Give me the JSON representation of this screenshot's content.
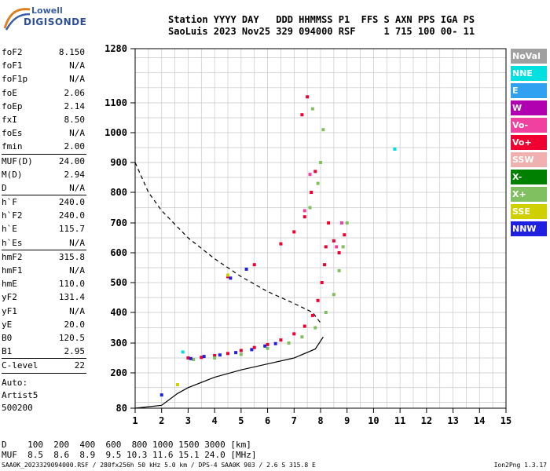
{
  "logo": {
    "line1": "Lowell",
    "line2": "DIGISONDE"
  },
  "header": {
    "row1": "Station YYYY DAY   DDD HHMMSS P1  FFS S AXN PPS IGA PS",
    "row2": "SaoLuis 2023 Nov25 329 094000 RSF     1 715 100 00- 11"
  },
  "params": [
    {
      "k": "foF2",
      "v": "8.150"
    },
    {
      "k": "foF1",
      "v": "N/A"
    },
    {
      "k": "foF1p",
      "v": "N/A"
    },
    {
      "k": "foE",
      "v": "2.06"
    },
    {
      "k": "foEp",
      "v": "2.14"
    },
    {
      "k": "fxI",
      "v": "8.50"
    },
    {
      "k": "foEs",
      "v": "N/A"
    },
    {
      "k": "fmin",
      "v": "2.00"
    },
    {
      "sep": true
    },
    {
      "k": "MUF(D)",
      "v": "24.00"
    },
    {
      "k": "M(D)",
      "v": "2.94"
    },
    {
      "k": "D",
      "v": "N/A"
    },
    {
      "sep": true
    },
    {
      "k": "h`F",
      "v": "240.0"
    },
    {
      "k": "h`F2",
      "v": "240.0"
    },
    {
      "k": "h`E",
      "v": "115.7"
    },
    {
      "k": "h`Es",
      "v": "N/A"
    },
    {
      "sep": true
    },
    {
      "k": "hmF2",
      "v": "315.8"
    },
    {
      "k": "hmF1",
      "v": "N/A"
    },
    {
      "k": "hmE",
      "v": "110.0"
    },
    {
      "k": "yF2",
      "v": "131.4"
    },
    {
      "k": "yF1",
      "v": "N/A"
    },
    {
      "k": "yE",
      "v": "20.0"
    },
    {
      "k": "B0",
      "v": "120.5"
    },
    {
      "k": "B1",
      "v": "2.95"
    },
    {
      "sep": true
    },
    {
      "k": "C-level",
      "v": "22"
    },
    {
      "sep": true
    }
  ],
  "auto": {
    "l1": "Auto:",
    "l2": "Artist5",
    "l3": "500200"
  },
  "legend": [
    {
      "label": "NoVal",
      "color": "#a0a0a0"
    },
    {
      "label": "NNE",
      "color": "#00e0e0"
    },
    {
      "label": "E",
      "color": "#30a0f0"
    },
    {
      "label": "W",
      "color": "#b000b0"
    },
    {
      "label": "Vo-",
      "color": "#f040a0"
    },
    {
      "label": "Vo+",
      "color": "#f00030"
    },
    {
      "label": "SSW",
      "color": "#f0b0b0"
    },
    {
      "label": "X-",
      "color": "#008000"
    },
    {
      "label": "X+",
      "color": "#80c060"
    },
    {
      "label": "SSE",
      "color": "#d0d000"
    },
    {
      "label": "NNW",
      "color": "#2020e0"
    }
  ],
  "bottom": {
    "row1": "D    100  200  400  600  800 1000 1500 3000 [km]",
    "row2": "MUF  8.5  8.6  8.9  9.5 10.3 11.6 15.1 24.0 [MHz]"
  },
  "footer": {
    "left": "SAA0K_2023329094000.RSF / 280fx256h 50 kHz 5.0 km / DPS-4 SAA0K 903 / 2.6 S 315.8 E",
    "right": "Ion2Png 1.3.17"
  },
  "chart_data": {
    "type": "scatter",
    "title": "",
    "xlabel": "",
    "ylabel": "",
    "xlim": [
      1,
      15
    ],
    "ylim": [
      80,
      1280
    ],
    "x_ticks": [
      1,
      2,
      3,
      4,
      5,
      6,
      7,
      8,
      9,
      10,
      11,
      12,
      13,
      14,
      15
    ],
    "y_ticks": [
      80,
      200,
      300,
      400,
      500,
      600,
      700,
      800,
      900,
      1000,
      1100,
      1280
    ],
    "grid": true,
    "profile_curve": [
      [
        1,
        80
      ],
      [
        2,
        90
      ],
      [
        2.6,
        130
      ],
      [
        3,
        150
      ],
      [
        4,
        185
      ],
      [
        5,
        210
      ],
      [
        6,
        230
      ],
      [
        7,
        250
      ],
      [
        7.8,
        280
      ],
      [
        8.1,
        320
      ]
    ],
    "mufd_curve": [
      [
        1,
        900
      ],
      [
        1.5,
        800
      ],
      [
        2,
        740
      ],
      [
        3,
        650
      ],
      [
        4,
        580
      ],
      [
        5,
        520
      ],
      [
        6,
        470
      ],
      [
        7,
        430
      ],
      [
        7.7,
        400
      ],
      [
        8.05,
        360
      ]
    ],
    "traces": [
      {
        "name": "Vo+",
        "color": "#f00030",
        "points": [
          [
            3,
            250
          ],
          [
            3.5,
            252
          ],
          [
            4,
            258
          ],
          [
            4.5,
            265
          ],
          [
            5,
            275
          ],
          [
            5.5,
            285
          ],
          [
            6,
            295
          ],
          [
            6.5,
            310
          ],
          [
            7,
            330
          ],
          [
            7.4,
            355
          ],
          [
            7.7,
            390
          ],
          [
            7.9,
            440
          ],
          [
            8.05,
            500
          ],
          [
            8.15,
            560
          ],
          [
            8.2,
            620
          ],
          [
            8.3,
            700
          ],
          [
            8.5,
            640
          ],
          [
            8.7,
            600
          ],
          [
            8.9,
            660
          ],
          [
            4.5,
            520
          ],
          [
            5.5,
            560
          ],
          [
            6.5,
            630
          ],
          [
            7,
            670
          ],
          [
            7.4,
            720
          ],
          [
            7.65,
            800
          ],
          [
            7.8,
            870
          ],
          [
            7.5,
            1120
          ],
          [
            7.3,
            1060
          ]
        ]
      },
      {
        "name": "X+",
        "color": "#80c060",
        "points": [
          [
            3.2,
            245
          ],
          [
            4,
            250
          ],
          [
            5,
            262
          ],
          [
            6,
            282
          ],
          [
            6.8,
            300
          ],
          [
            7.3,
            320
          ],
          [
            7.8,
            350
          ],
          [
            8.2,
            400
          ],
          [
            8.5,
            460
          ],
          [
            8.7,
            540
          ],
          [
            8.85,
            620
          ],
          [
            9,
            700
          ],
          [
            7.6,
            750
          ],
          [
            7.9,
            830
          ],
          [
            8.0,
            900
          ],
          [
            7.7,
            1080
          ],
          [
            8.1,
            1010
          ],
          [
            10.8,
            945
          ]
        ]
      },
      {
        "name": "NNW",
        "color": "#2020e0",
        "points": [
          [
            3.1,
            248
          ],
          [
            3.6,
            255
          ],
          [
            4.2,
            260
          ],
          [
            4.8,
            268
          ],
          [
            5.4,
            278
          ],
          [
            5.9,
            290
          ],
          [
            6.3,
            298
          ],
          [
            4.6,
            515
          ],
          [
            5.2,
            545
          ],
          [
            2,
            125
          ]
        ]
      },
      {
        "name": "Vo-",
        "color": "#f040a0",
        "points": [
          [
            7.4,
            740
          ],
          [
            7.6,
            860
          ],
          [
            8.6,
            620
          ],
          [
            8.8,
            700
          ]
        ]
      },
      {
        "name": "NNE",
        "color": "#00e0e0",
        "points": [
          [
            2.8,
            270
          ],
          [
            10.8,
            945
          ]
        ]
      },
      {
        "name": "SSE",
        "color": "#d0d000",
        "points": [
          [
            2.6,
            160
          ],
          [
            4.5,
            525
          ]
        ]
      }
    ]
  }
}
